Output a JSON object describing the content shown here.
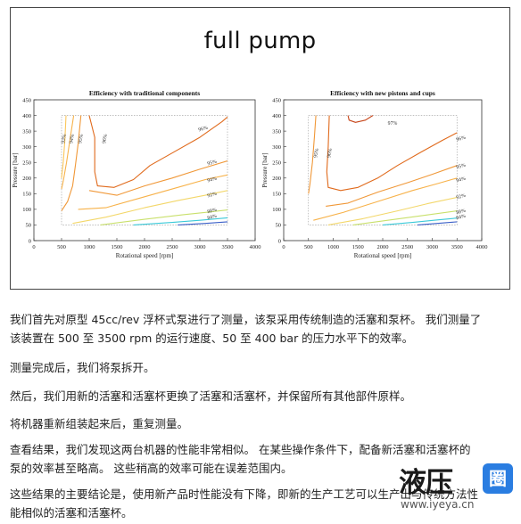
{
  "slide": {
    "title": "full pump"
  },
  "chart_data": [
    {
      "type": "contour",
      "title": "Efficiency with traditional components",
      "xlabel": "Rotational speed [rpm]",
      "ylabel": "Pressure [bar]",
      "xlim": [
        0,
        4000
      ],
      "ylim": [
        0,
        450
      ],
      "xticks": [
        0,
        500,
        1000,
        1500,
        2000,
        2500,
        3000,
        3500,
        4000
      ],
      "yticks": [
        0,
        50,
        100,
        150,
        200,
        250,
        300,
        350,
        400,
        450
      ],
      "region": {
        "x": [
          500,
          3500
        ],
        "y": [
          50,
          400
        ]
      },
      "contour_labels": [
        "93%",
        "94%",
        "95%",
        "96%",
        "96%",
        "95%",
        "94%",
        "92%",
        "88%",
        "84%"
      ],
      "series": [
        {
          "level": "96%",
          "color": "#e06a1c",
          "points": [
            [
              1000,
              400
            ],
            [
              1100,
              330
            ],
            [
              1100,
              220
            ],
            [
              1150,
              175
            ],
            [
              1450,
              170
            ],
            [
              1800,
              195
            ],
            [
              2100,
              240
            ],
            [
              2500,
              280
            ],
            [
              3000,
              330
            ],
            [
              3400,
              380
            ],
            [
              3500,
              395
            ]
          ]
        },
        {
          "level": "95%",
          "color": "#f09838",
          "points": [
            [
              850,
              400
            ],
            [
              800,
              310
            ],
            [
              750,
              240
            ],
            [
              700,
              175
            ],
            [
              610,
              125
            ],
            [
              500,
              95
            ]
          ]
        },
        {
          "level": "95%",
          "color": "#f09838",
          "points": [
            [
              1000,
              160
            ],
            [
              1500,
              145
            ],
            [
              2000,
              175
            ],
            [
              2500,
              200
            ],
            [
              3000,
              228
            ],
            [
              3500,
              255
            ]
          ]
        },
        {
          "level": "94%",
          "color": "#f7b24a",
          "points": [
            [
              720,
              400
            ],
            [
              650,
              320
            ],
            [
              590,
              250
            ],
            [
              530,
              190
            ],
            [
              500,
              165
            ]
          ]
        },
        {
          "level": "94%",
          "color": "#f7b24a",
          "points": [
            [
              800,
              100
            ],
            [
              1300,
              105
            ],
            [
              2000,
              140
            ],
            [
              2600,
              170
            ],
            [
              3100,
              195
            ],
            [
              3500,
              210
            ]
          ]
        },
        {
          "level": "93%",
          "color": "#fbc75c",
          "points": [
            [
              580,
              400
            ],
            [
              560,
              320
            ],
            [
              530,
              250
            ],
            [
              500,
              200
            ]
          ]
        },
        {
          "level": "92%",
          "color": "#f3d76a",
          "points": [
            [
              700,
              55
            ],
            [
              1300,
              75
            ],
            [
              2000,
              105
            ],
            [
              2600,
              128
            ],
            [
              3100,
              145
            ],
            [
              3500,
              160
            ]
          ]
        },
        {
          "level": "88%",
          "color": "#c9e06c",
          "points": [
            [
              1200,
              50
            ],
            [
              2000,
              68
            ],
            [
              2700,
              83
            ],
            [
              3200,
              92
            ],
            [
              3500,
              98
            ]
          ]
        },
        {
          "level": "84%",
          "color": "#3ac9d8",
          "points": [
            [
              1800,
              50
            ],
            [
              2500,
              58
            ],
            [
              3000,
              65
            ],
            [
              3500,
              73
            ]
          ]
        },
        {
          "level": "80%",
          "color": "#3a5fc7",
          "points": [
            [
              2600,
              50
            ],
            [
              3100,
              55
            ],
            [
              3500,
              60
            ]
          ]
        }
      ]
    },
    {
      "type": "contour",
      "title": "Efficiency with new pistons and cups",
      "xlabel": "Rotational speed [rpm]",
      "ylabel": "Pressure [bar]",
      "xlim": [
        0,
        4000
      ],
      "ylim": [
        0,
        450
      ],
      "xticks": [
        0,
        500,
        1000,
        1500,
        2000,
        2500,
        3000,
        3500,
        4000
      ],
      "yticks": [
        0,
        50,
        100,
        150,
        200,
        250,
        300,
        350,
        400,
        450
      ],
      "region": {
        "x": [
          500,
          3500
        ],
        "y": [
          50,
          400
        ]
      },
      "contour_labels": [
        "97%",
        "95%",
        "96%",
        "96%",
        "95%",
        "94%",
        "92%",
        "88%",
        "84%"
      ],
      "series": [
        {
          "level": "97%",
          "color": "#c64418",
          "points": [
            [
              1300,
              400
            ],
            [
              1320,
              385
            ],
            [
              1450,
              378
            ],
            [
              1650,
              385
            ],
            [
              1800,
              400
            ]
          ]
        },
        {
          "level": "96%",
          "color": "#e06a1c",
          "points": [
            [
              920,
              400
            ],
            [
              900,
              300
            ],
            [
              870,
              220
            ],
            [
              900,
              170
            ],
            [
              1150,
              160
            ],
            [
              1500,
              170
            ],
            [
              1900,
              200
            ],
            [
              2300,
              240
            ],
            [
              2800,
              285
            ],
            [
              3200,
              320
            ],
            [
              3500,
              345
            ]
          ]
        },
        {
          "level": "95%",
          "color": "#f09838",
          "points": [
            [
              650,
              400
            ],
            [
              620,
              330
            ],
            [
              580,
              250
            ],
            [
              530,
              180
            ],
            [
              500,
              150
            ]
          ]
        },
        {
          "level": "95%",
          "color": "#f09838",
          "points": [
            [
              850,
              110
            ],
            [
              1300,
              120
            ],
            [
              1900,
              155
            ],
            [
              2500,
              185
            ],
            [
              3000,
              212
            ],
            [
              3500,
              240
            ]
          ]
        },
        {
          "level": "94%",
          "color": "#f7b24a",
          "points": [
            [
              600,
              65
            ],
            [
              1200,
              90
            ],
            [
              1900,
              125
            ],
            [
              2600,
              160
            ],
            [
              3100,
              182
            ],
            [
              3500,
              200
            ]
          ]
        },
        {
          "level": "92%",
          "color": "#f3d76a",
          "points": [
            [
              900,
              50
            ],
            [
              1600,
              70
            ],
            [
              2300,
              95
            ],
            [
              2900,
              118
            ],
            [
              3500,
              138
            ]
          ]
        },
        {
          "level": "88%",
          "color": "#c9e06c",
          "points": [
            [
              1400,
              50
            ],
            [
              2100,
              65
            ],
            [
              2800,
              80
            ],
            [
              3500,
              95
            ]
          ]
        },
        {
          "level": "84%",
          "color": "#3ac9d8",
          "points": [
            [
              2000,
              50
            ],
            [
              2600,
              58
            ],
            [
              3100,
              66
            ],
            [
              3500,
              72
            ]
          ]
        },
        {
          "level": "80%",
          "color": "#3a5fc7",
          "points": [
            [
              2700,
              50
            ],
            [
              3100,
              55
            ],
            [
              3500,
              60
            ]
          ]
        }
      ]
    }
  ],
  "paragraphs": [
    [
      "我们首先对原型 45cc/rev 浮杯式泵进行了测量，该泵采用传统制造的活塞和泵杯。 我们测量了",
      "该装置在 500 至 3500 rpm 的运行速度、50 至 400 bar 的压力水平下的效率。"
    ],
    [
      "测量完成后，我们将泵拆开。"
    ],
    [
      "然后，我们用新的活塞和活塞杯更换了活塞和活塞杯，并保留所有其他部件原样。"
    ],
    [
      "将机器重新组装起来后，重复测量。"
    ],
    [
      "查看结果，我们发现这两台机器的性能非常相似。    在某些操作条件下，配备新活塞和活塞杯的",
      "泵的效率甚至略高。 这些稍高的效率可能在误差范围内。"
    ],
    [
      "这些结果的主要结论是，使用新产品时性能没有下降，即新的生产工艺可以生产出与传统方法性",
      "能相似的活塞和活塞杯。"
    ]
  ],
  "watermark": {
    "big": "液压",
    "badge": "圈",
    "url": "www.iyeya.cn",
    "icon": "⊛"
  }
}
